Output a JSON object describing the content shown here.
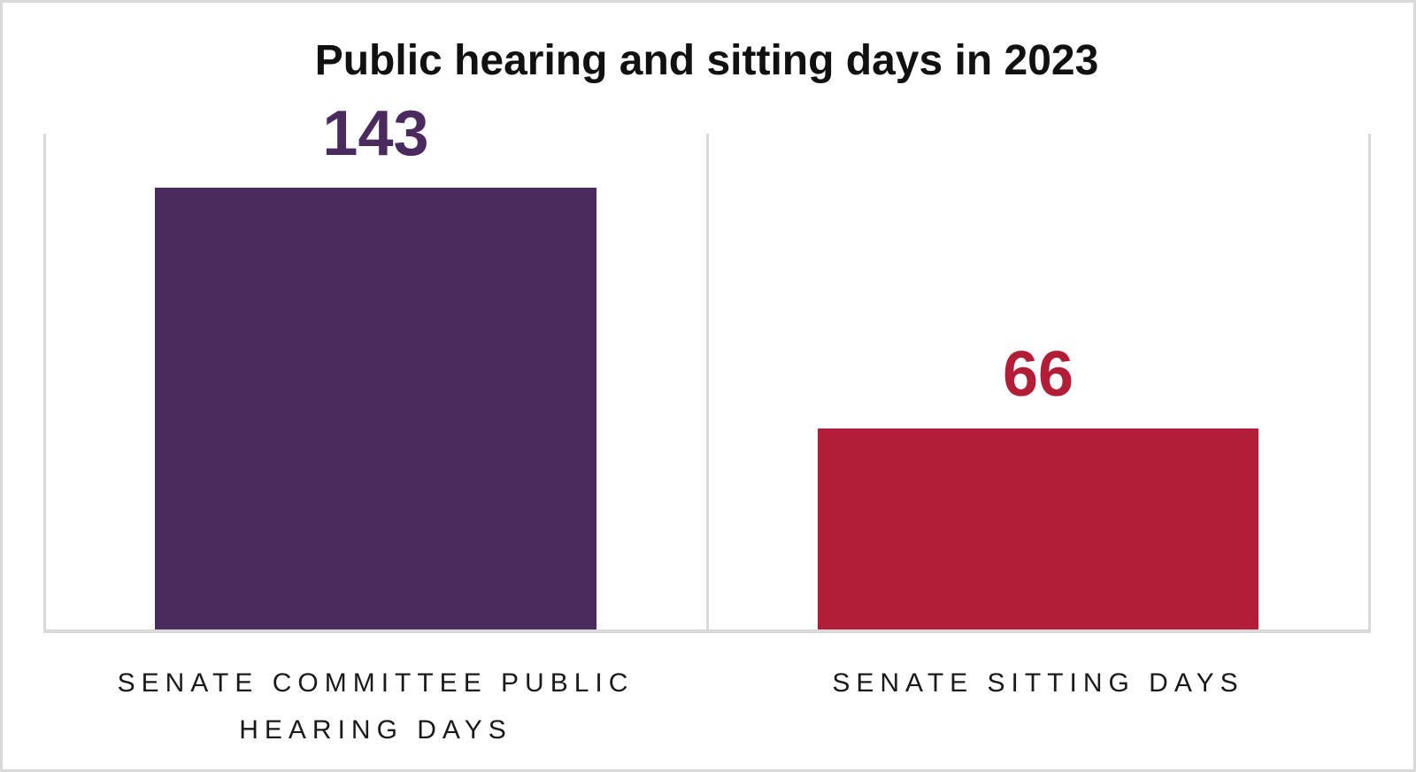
{
  "title": {
    "text": "Public hearing and sitting days in 2023"
  },
  "chart_data": {
    "type": "bar",
    "title": "Public hearing and sitting days in 2023",
    "categories": [
      "SENATE COMMITTEE PUBLIC HEARING DAYS",
      "SENATE SITTING DAYS"
    ],
    "values": [
      143,
      66
    ],
    "data_labels": [
      "143",
      "66"
    ],
    "bar_colors": [
      "#4b2b5e",
      "#b21e37"
    ],
    "xlabel": "",
    "ylabel": "",
    "ylim": [
      0,
      143
    ],
    "legend": "none",
    "grid": "light gray vertical panel separators and bottom baseline",
    "gridline_color": "#d9d9d9",
    "background_color": "#ffffff",
    "frame_border_color": "#d9d9d9"
  },
  "bars": [
    {
      "name": "senate-committee-public-hearing-days",
      "value": "143",
      "color": "#4b2b5e",
      "label_lines": [
        "SENATE COMMITTEE PUBLIC",
        "HEARING DAYS"
      ]
    },
    {
      "name": "senate-sitting-days",
      "value": "66",
      "color": "#b21e37",
      "label_lines": [
        "SENATE SITTING DAYS"
      ]
    }
  ]
}
